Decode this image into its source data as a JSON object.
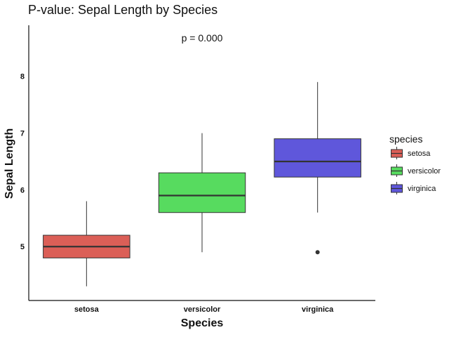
{
  "chart_data": {
    "type": "box",
    "title": "P-value: Sepal Length by Species",
    "annotation": "p = 0.000",
    "xlabel": "Species",
    "ylabel": "Sepal Length",
    "categories": [
      "setosa",
      "versicolor",
      "virginica"
    ],
    "ylim": [
      4.05,
      8.9
    ],
    "yticks": [
      "5",
      "6",
      "7",
      "8"
    ],
    "grid": false,
    "legend": {
      "title": "species",
      "position": "right",
      "entries": [
        "setosa",
        "versicolor",
        "virginica"
      ]
    },
    "colors": {
      "setosa": "#db5f57",
      "versicolor": "#57db5f",
      "virginica": "#5f57db"
    },
    "series": [
      {
        "category": "setosa",
        "whisker_low": 4.3,
        "q1": 4.8,
        "median": 5.0,
        "q3": 5.2,
        "whisker_high": 5.8,
        "outliers": []
      },
      {
        "category": "versicolor",
        "whisker_low": 4.9,
        "q1": 5.6,
        "median": 5.9,
        "q3": 6.3,
        "whisker_high": 7.0,
        "outliers": []
      },
      {
        "category": "virginica",
        "whisker_low": 5.6,
        "q1": 6.225,
        "median": 6.5,
        "q3": 6.9,
        "whisker_high": 7.9,
        "outliers": [
          4.9
        ]
      }
    ]
  }
}
